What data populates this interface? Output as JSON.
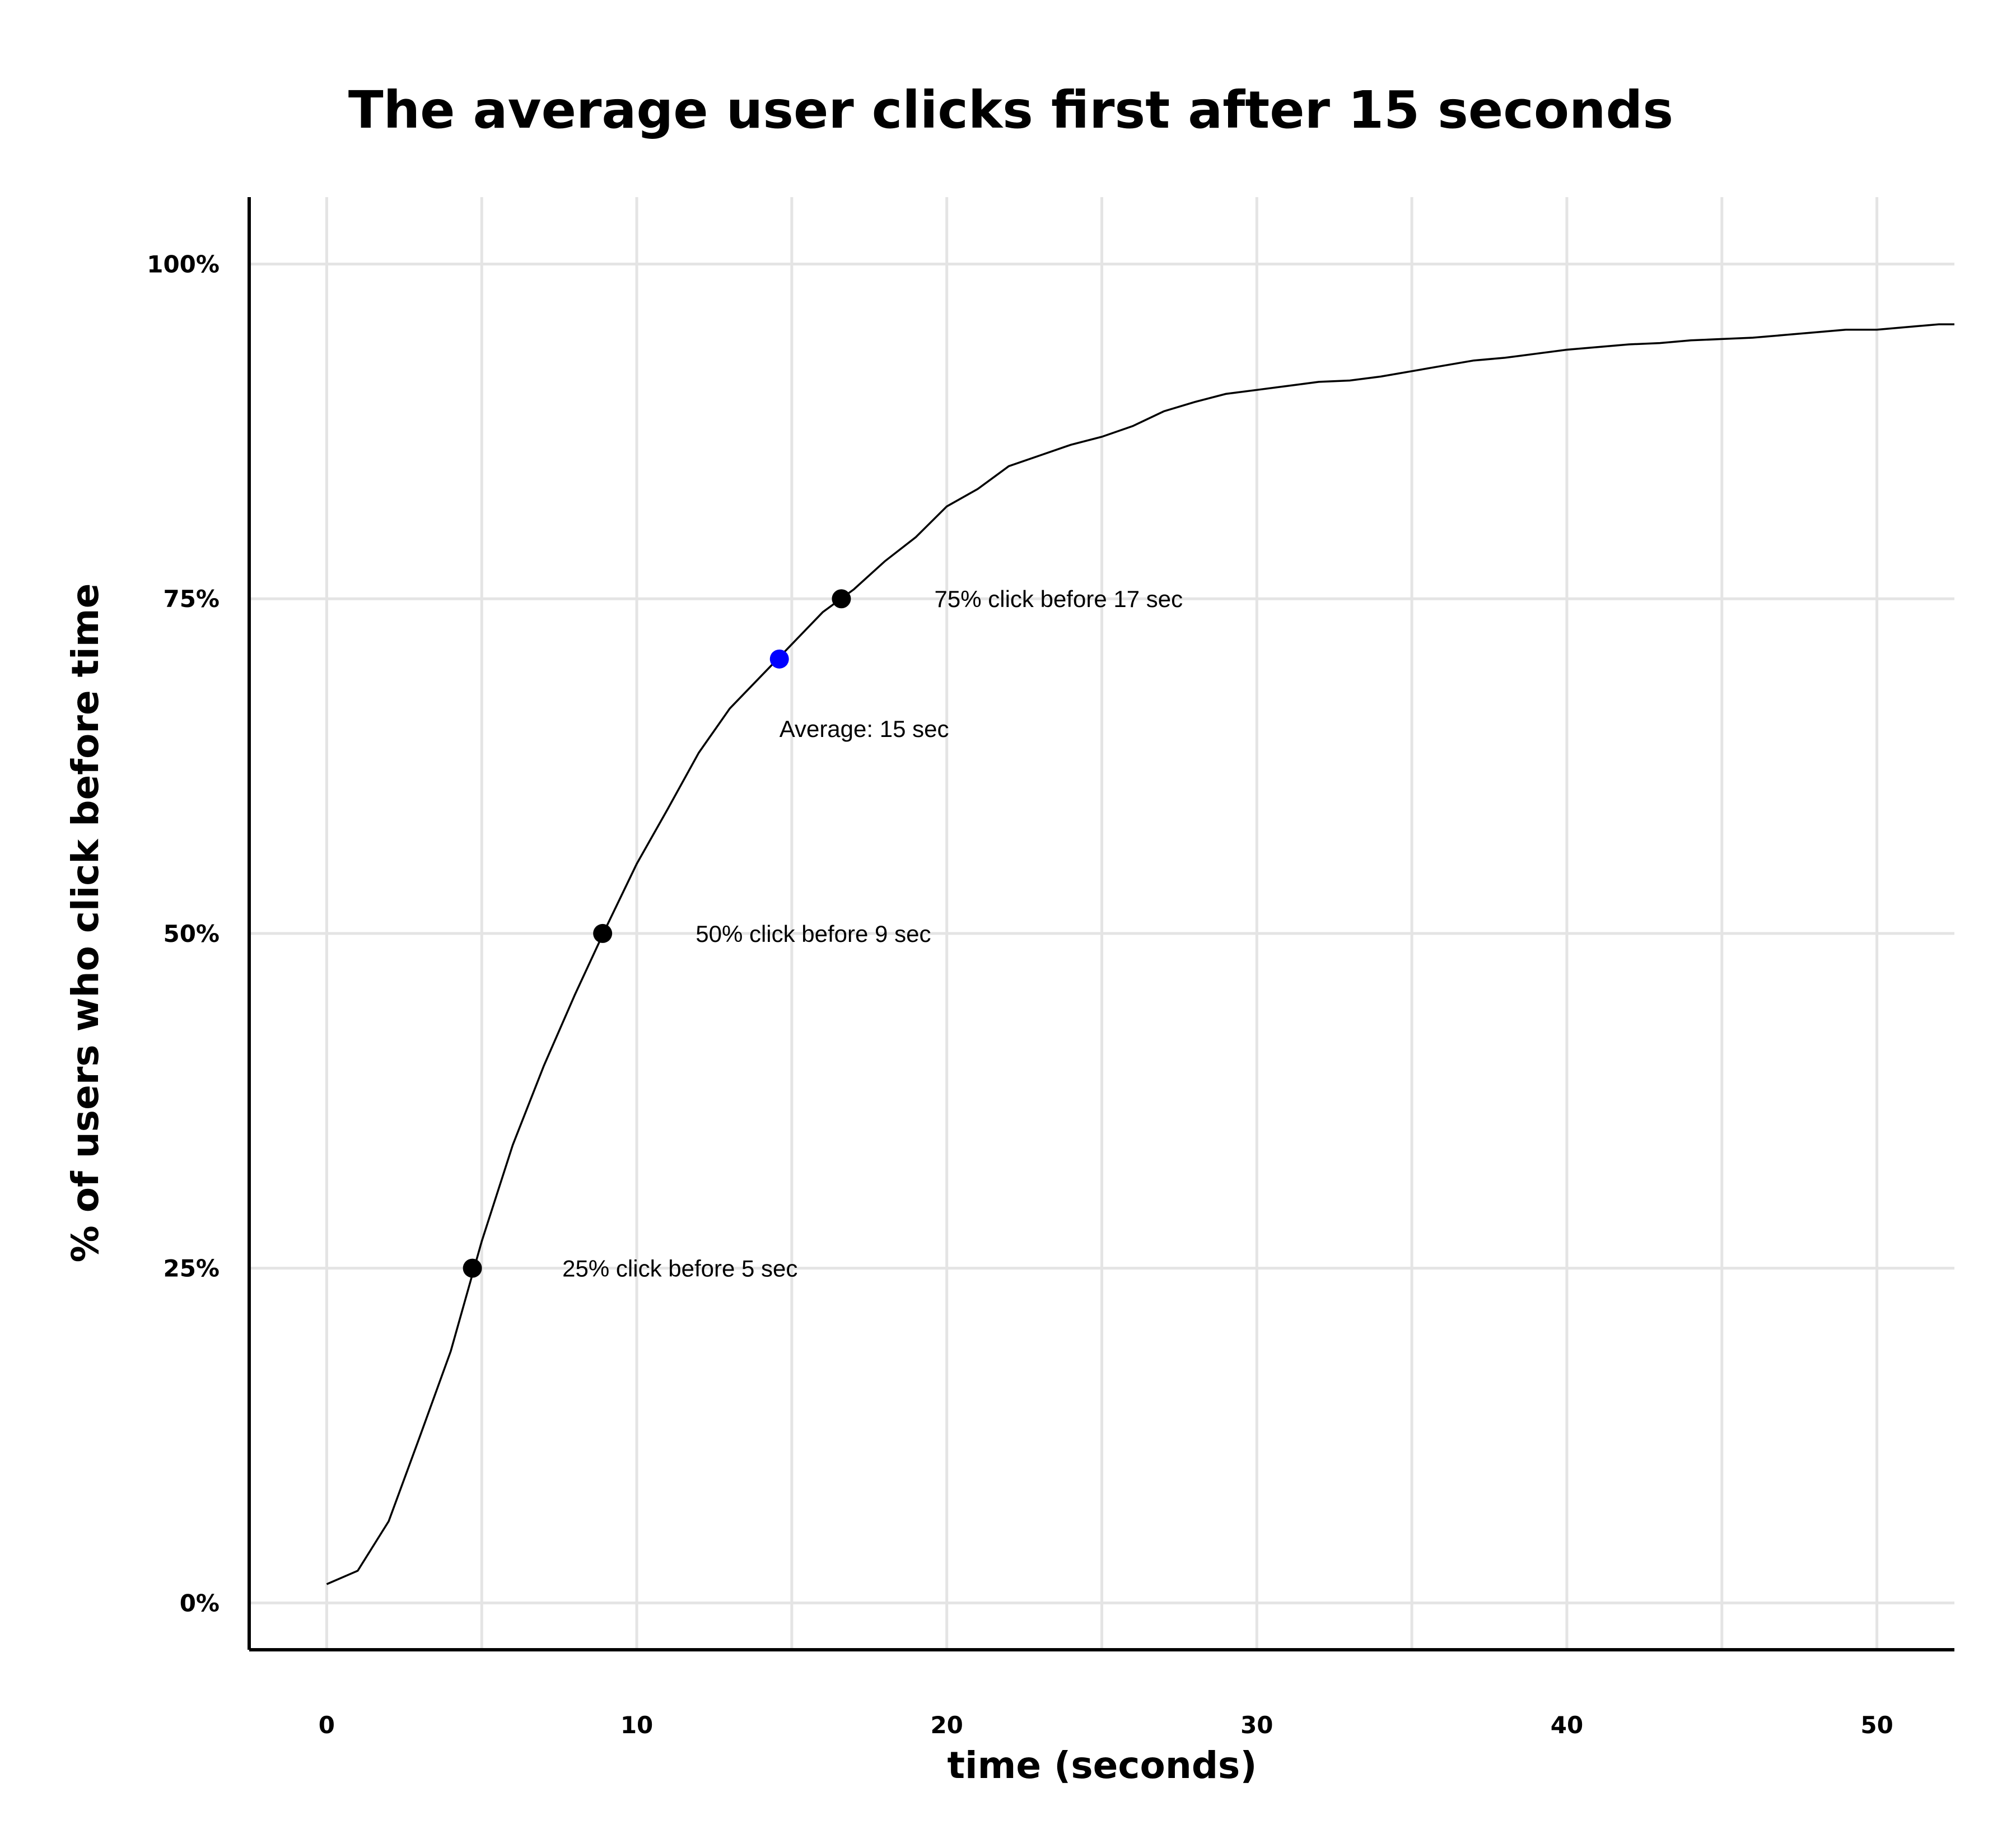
{
  "chart_data": {
    "type": "line",
    "title": "The average user clicks first after 15 seconds",
    "xlabel": "time (seconds)",
    "ylabel": "% of users who click before time",
    "xlim": [
      -2.5,
      52.5
    ],
    "ylim": [
      -3.5,
      105
    ],
    "grid": true,
    "x_ticks": [
      {
        "value": 0,
        "label": "0"
      },
      {
        "value": 5,
        "label": ""
      },
      {
        "value": 10,
        "label": "10"
      },
      {
        "value": 15,
        "label": ""
      },
      {
        "value": 20,
        "label": "20"
      },
      {
        "value": 25,
        "label": ""
      },
      {
        "value": 30,
        "label": "30"
      },
      {
        "value": 35,
        "label": ""
      },
      {
        "value": 40,
        "label": "40"
      },
      {
        "value": 45,
        "label": ""
      },
      {
        "value": 50,
        "label": "50"
      }
    ],
    "y_ticks": [
      {
        "value": 0,
        "label": "0%"
      },
      {
        "value": 25,
        "label": "25%"
      },
      {
        "value": 50,
        "label": "50%"
      },
      {
        "value": 75,
        "label": "75%"
      },
      {
        "value": 100,
        "label": "100%"
      }
    ],
    "series": [
      {
        "x": [
          0,
          1,
          2,
          3,
          4,
          5,
          6,
          7,
          8,
          9,
          10,
          11,
          12,
          13,
          14,
          15,
          16,
          17,
          18,
          19,
          20,
          21,
          22,
          23,
          24,
          25,
          26,
          27,
          28,
          29,
          30,
          31,
          32,
          33,
          34,
          35,
          36,
          37,
          38,
          39,
          40,
          41,
          42,
          43,
          44,
          45,
          46,
          47,
          48,
          49,
          50,
          51,
          52,
          52.5
        ],
        "y": [
          1.4,
          2.4,
          6.1,
          12.4,
          18.8,
          27.0,
          34.2,
          40.1,
          45.4,
          50.4,
          55.2,
          59.3,
          63.5,
          66.8,
          69.2,
          71.6,
          74.0,
          75.7,
          77.8,
          79.6,
          81.9,
          83.2,
          84.9,
          85.7,
          86.5,
          87.1,
          87.9,
          89.0,
          89.7,
          90.3,
          90.6,
          90.9,
          91.2,
          91.3,
          91.6,
          92.0,
          92.4,
          92.8,
          93.0,
          93.3,
          93.6,
          93.8,
          94.0,
          94.1,
          94.3,
          94.4,
          94.5,
          94.7,
          94.9,
          95.1,
          95.1,
          95.3,
          95.5,
          95.5
        ]
      }
    ],
    "markers": [
      {
        "x": 4.7,
        "y": 25,
        "color": "#000000",
        "label": "25% click before 5 sec",
        "label_x": 7.6,
        "label_y": 25,
        "anchor": "start"
      },
      {
        "x": 8.9,
        "y": 50,
        "color": "#000000",
        "label": "50% click before 9 sec",
        "label_x": 11.9,
        "label_y": 50,
        "anchor": "start"
      },
      {
        "x": 14.6,
        "y": 70.5,
        "color": "#0000ff",
        "label": "Average: 15 sec",
        "label_x": 14.6,
        "label_y": 65.3,
        "anchor": "start"
      },
      {
        "x": 16.6,
        "y": 75,
        "color": "#000000",
        "label": "75% click before 17 sec",
        "label_x": 19.6,
        "label_y": 75,
        "anchor": "start"
      }
    ]
  }
}
